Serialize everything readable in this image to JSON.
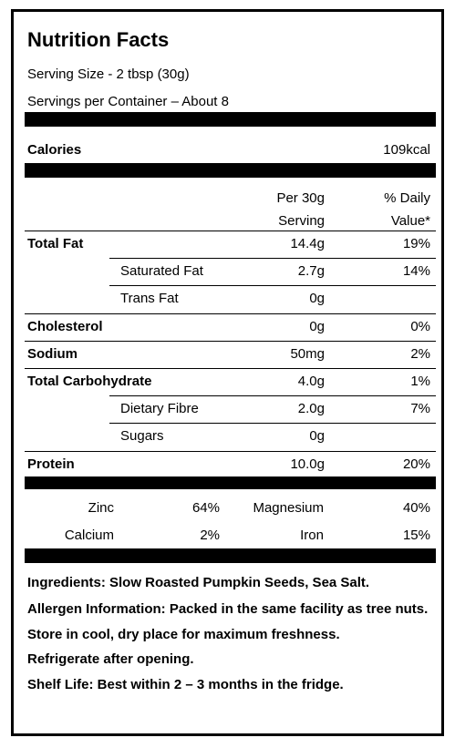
{
  "title": "Nutrition Facts",
  "serving_size": "Serving Size - 2 tbsp (30g)",
  "servings_per_container": "Servings per Container – About 8",
  "calories": {
    "label": "Calories",
    "value": "109kcal"
  },
  "table": {
    "header": [
      "Per 30g Serving",
      "% Daily Value*"
    ],
    "nutrients": [
      {
        "name": "Total Fat",
        "amount": "14.4g",
        "daily_value": "19%",
        "sub": [
          {
            "name": "Saturated Fat",
            "amount": "2.7g",
            "daily_value": "14%"
          },
          {
            "name": "Trans Fat",
            "amount": "0g",
            "daily_value": ""
          }
        ]
      },
      {
        "name": "Cholesterol",
        "amount": "0g",
        "daily_value": "0%",
        "sub": []
      },
      {
        "name": "Sodium",
        "amount": "50mg",
        "daily_value": "2%",
        "sub": []
      },
      {
        "name": "Total Carbohydrate",
        "amount": "4.0g",
        "daily_value": "1%",
        "sub": [
          {
            "name": "Dietary Fibre",
            "amount": "2.0g",
            "daily_value": "7%"
          },
          {
            "name": "Sugars",
            "amount": "0g",
            "daily_value": ""
          }
        ]
      },
      {
        "name": "Protein",
        "amount": "10.0g",
        "daily_value": "20%",
        "sub": []
      }
    ]
  },
  "minerals": [
    [
      {
        "name": "Zinc",
        "value": "64%"
      },
      {
        "name": "Magnesium",
        "value": "40%"
      }
    ],
    [
      {
        "name": "Calcium",
        "value": "2%"
      },
      {
        "name": "Iron",
        "value": "15%"
      }
    ]
  ],
  "notes": [
    "Ingredients: Slow Roasted Pumpkin Seeds, Sea Salt.",
    "Allergen Information: Packed in the same facility as tree nuts.",
    "Store in cool, dry place for maximum freshness.",
    "Refrigerate after opening.",
    "Shelf Life: Best within 2 – 3 months in the fridge."
  ]
}
